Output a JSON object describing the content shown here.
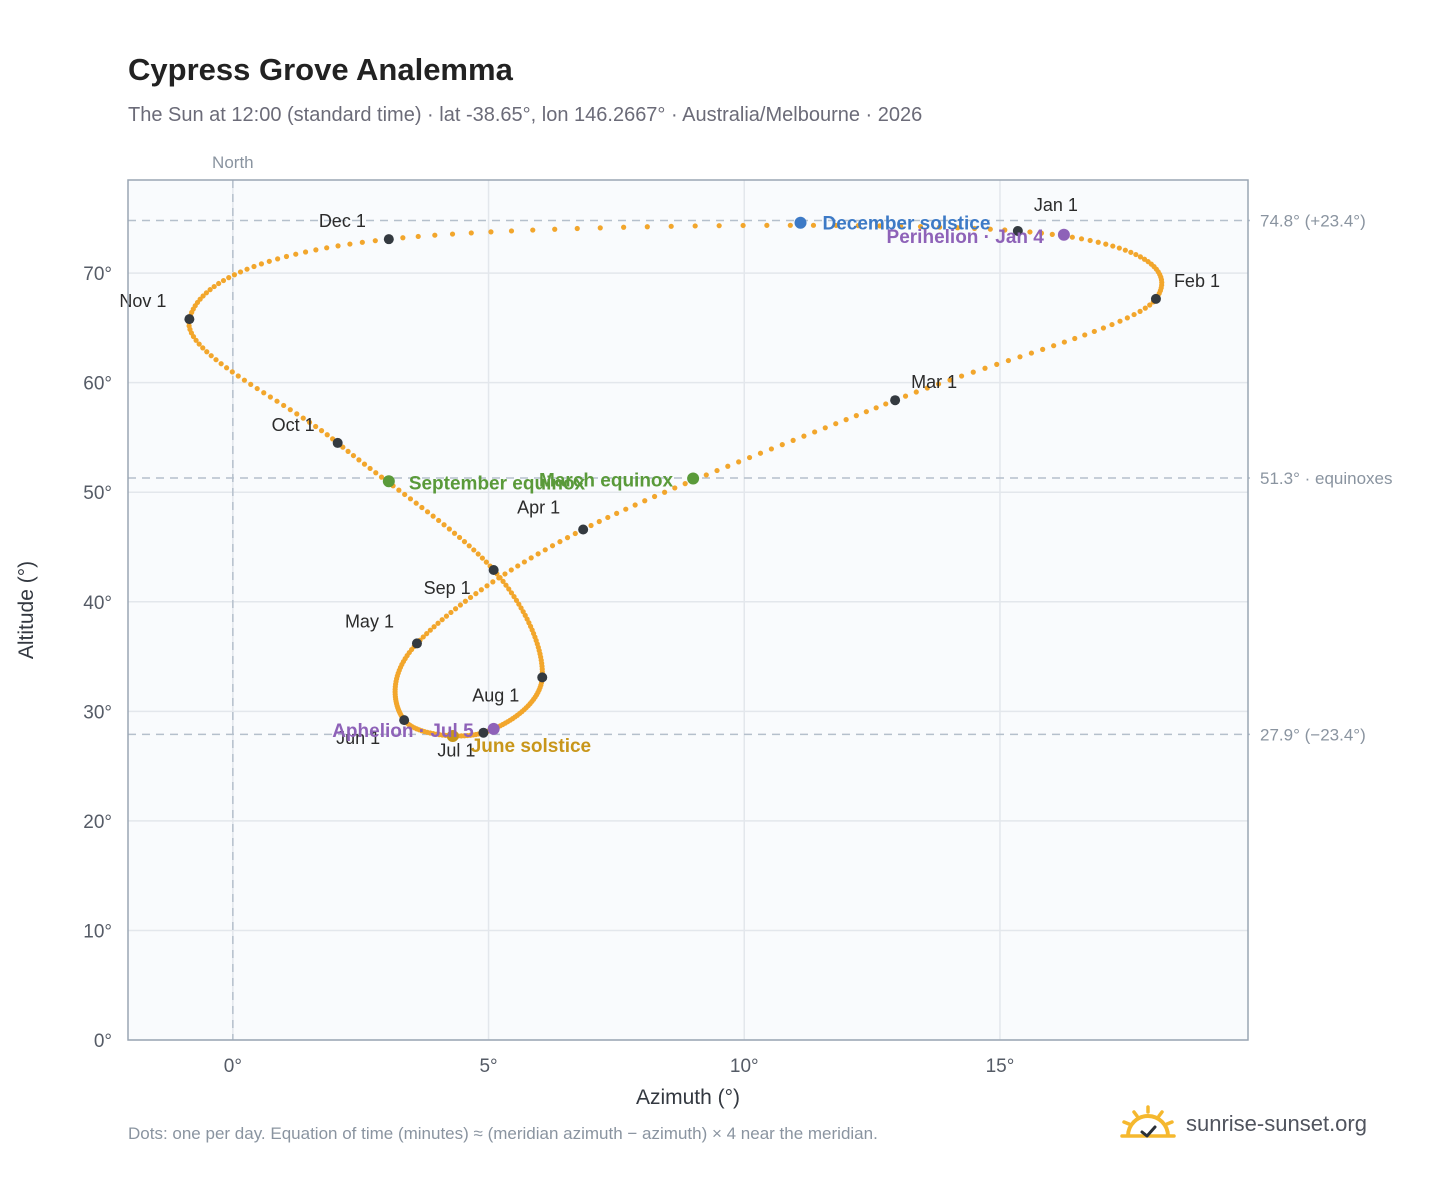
{
  "header": {
    "title": "Cypress Grove Analemma",
    "subtitle": "The Sun at 12:00 (standard time) · lat -38.65°, lon 146.2667° · Australia/Melbourne · 2026"
  },
  "footer": {
    "note": "Dots: one per day. Equation of time (minutes) ≈ (meridian azimuth − azimuth) × 4 near the meridian.",
    "brand": "sunrise-sunset.org"
  },
  "colors": {
    "analemma": "#f2a62c",
    "month_marker": "#343a40",
    "equinox": "#5a9a3a",
    "december_solstice": "#3d7ac6",
    "june_solstice": "#c8961a",
    "perihelion_aphelion": "#8e62b8",
    "grid": "#e3e7ec",
    "reference_line": "#b5c0cc",
    "plot_background": "#f9fbfd",
    "plot_border": "#9aa6b4",
    "brand_sun": "#f5b82e"
  },
  "chart_data": {
    "type": "scatter",
    "xlabel": "Azimuth (°)",
    "ylabel": "Altitude (°)",
    "xlim": [
      -2.05,
      19.85
    ],
    "ylim": [
      0,
      78.5
    ],
    "xticks": [
      0,
      5,
      10,
      15
    ],
    "xtick_labels": [
      "0°",
      "5°",
      "10°",
      "15°"
    ],
    "yticks": [
      0,
      10,
      20,
      30,
      40,
      50,
      60,
      70
    ],
    "ytick_labels": [
      "0°",
      "10°",
      "20°",
      "30°",
      "40°",
      "50°",
      "60°",
      "70°"
    ],
    "grid": true,
    "north_line": {
      "azimuth": 0,
      "label": "North"
    },
    "reference_lines": [
      {
        "altitude": 74.8,
        "label": "74.8° (+23.4°)"
      },
      {
        "altitude": 51.3,
        "label": "51.3° · equinoxes"
      },
      {
        "altitude": 27.9,
        "label": "27.9° (−23.4°)"
      }
    ],
    "series": [
      {
        "points": [
          [
            15.35,
            73.85
          ],
          [
            18.05,
            67.65
          ],
          [
            12.95,
            58.4
          ],
          [
            6.85,
            46.6
          ],
          [
            3.6,
            36.2
          ],
          [
            3.35,
            29.2
          ],
          [
            4.9,
            28.05
          ],
          [
            6.05,
            33.1
          ],
          [
            5.1,
            42.9
          ],
          [
            2.05,
            54.5
          ],
          [
            -0.85,
            65.8
          ],
          [
            3.05,
            73.1
          ],
          [
            15.35,
            73.85
          ]
        ]
      }
    ],
    "month_markers": [
      {
        "label": "Jan 1",
        "azimuth": 15.35,
        "altitude": 73.85
      },
      {
        "label": "Feb 1",
        "azimuth": 18.05,
        "altitude": 67.65
      },
      {
        "label": "Mar 1",
        "azimuth": 12.95,
        "altitude": 58.4
      },
      {
        "label": "Apr 1",
        "azimuth": 6.85,
        "altitude": 46.6
      },
      {
        "label": "May 1",
        "azimuth": 3.6,
        "altitude": 36.2
      },
      {
        "label": "Jun 1",
        "azimuth": 3.35,
        "altitude": 29.2
      },
      {
        "label": "Jul 1",
        "azimuth": 4.9,
        "altitude": 28.05
      },
      {
        "label": "Aug 1",
        "azimuth": 6.05,
        "altitude": 33.1
      },
      {
        "label": "Sep 1",
        "azimuth": 5.1,
        "altitude": 42.9
      },
      {
        "label": "Oct 1",
        "azimuth": 2.05,
        "altitude": 54.5
      },
      {
        "label": "Nov 1",
        "azimuth": -0.85,
        "altitude": 65.8
      },
      {
        "label": "Dec 1",
        "azimuth": 3.05,
        "altitude": 73.1
      }
    ],
    "events": [
      {
        "label": "December solstice",
        "azimuth": 11.1,
        "altitude": 74.6,
        "color": "#3d7ac6"
      },
      {
        "label": "Perihelion · Jan 4",
        "azimuth": 16.25,
        "altitude": 73.5,
        "color": "#8e62b8"
      },
      {
        "label": "March equinox",
        "azimuth": 9.0,
        "altitude": 51.25,
        "color": "#5a9a3a"
      },
      {
        "label": "September equinox",
        "azimuth": 3.05,
        "altitude": 51.0,
        "color": "#5a9a3a"
      },
      {
        "label": "June solstice",
        "azimuth": 4.3,
        "altitude": 27.75,
        "color": "#c8961a"
      },
      {
        "label": "Aphelion · Jul 5",
        "azimuth": 5.1,
        "altitude": 28.4,
        "color": "#8e62b8"
      }
    ]
  }
}
